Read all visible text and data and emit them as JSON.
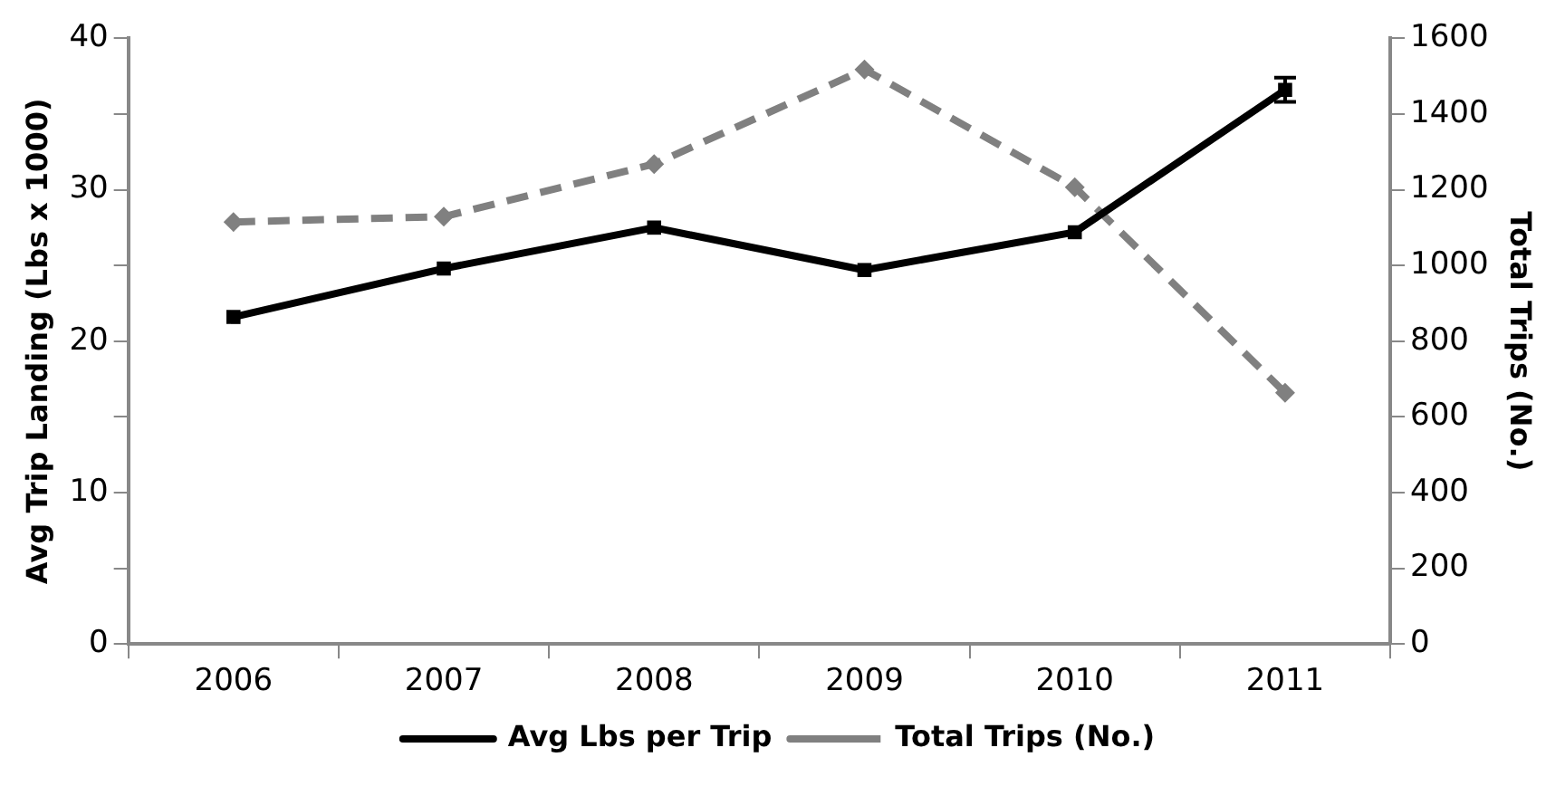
{
  "chart_data": {
    "type": "line",
    "categories": [
      "2006",
      "2007",
      "2008",
      "2009",
      "2010",
      "2011"
    ],
    "ylabel": "Avg Trip Landing (Lbs x 1000)",
    "y2label": "Total Trips (No.)",
    "ylim": [
      0,
      40
    ],
    "yticks": [
      0,
      {
        "value": 5,
        "label": null
      },
      10,
      {
        "value": 15,
        "label": null
      },
      20,
      {
        "value": 25,
        "label": null
      },
      30,
      {
        "value": 35,
        "label": null
      },
      40
    ],
    "y2lim": [
      0,
      1600
    ],
    "y2ticks": [
      0,
      200,
      400,
      600,
      800,
      1000,
      1200,
      1400,
      1600
    ],
    "grid": false,
    "legend": "bottom",
    "series": [
      {
        "name": "Avg Lbs per Trip",
        "color": "#000000",
        "values": [
          21.6,
          24.8,
          27.5,
          24.7,
          27.2,
          36.6
        ],
        "errors": [
          null,
          null,
          null,
          null,
          null,
          0.8
        ],
        "marker": "square",
        "line_style": "solid"
      },
      {
        "name": "Total Trips (No.)",
        "color": "#808080",
        "axis": "y2",
        "values": [
          1115,
          1129,
          1268,
          1518,
          1207,
          664
        ],
        "marker": "diamond",
        "line_style": "dashed"
      }
    ]
  }
}
